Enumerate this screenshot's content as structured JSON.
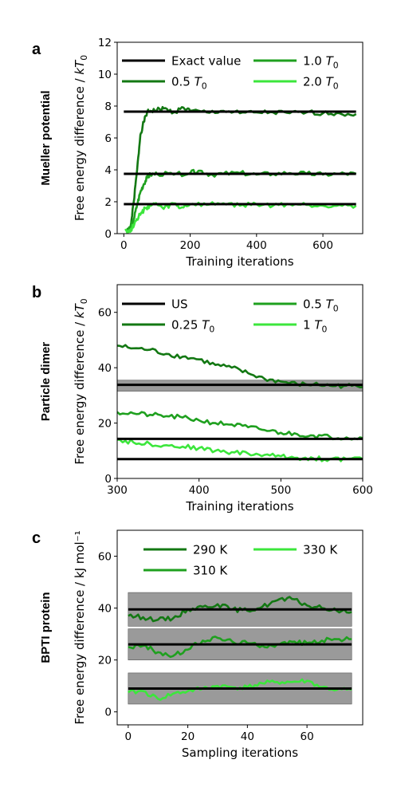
{
  "chart_data": [
    {
      "type": "line",
      "panel_letter": "a",
      "row_label": "Mueller potential",
      "xlabel": "Training iterations",
      "ylabel": "Free energy difference / kT0",
      "xlim": [
        -20,
        720
      ],
      "ylim": [
        0,
        12
      ],
      "xticks": [
        0,
        200,
        400,
        600
      ],
      "yticks": [
        0,
        2,
        4,
        6,
        8,
        10,
        12
      ],
      "legend_position": "top",
      "legend": [
        {
          "label": "Exact value",
          "color": "#000000"
        },
        {
          "label": "1.0 T0",
          "color": "#1fa01f"
        },
        {
          "label": "0.5 T0",
          "color": "#137813"
        },
        {
          "label": "2.0 T0",
          "color": "#3ce63c"
        }
      ],
      "reference_lines": [
        {
          "name": "Exact value",
          "y": 7.65,
          "x": [
            0,
            700
          ]
        },
        {
          "name": "Exact value",
          "y": 3.75,
          "x": [
            0,
            700
          ]
        },
        {
          "name": "Exact value",
          "y": 1.85,
          "x": [
            0,
            700
          ]
        }
      ],
      "series": [
        {
          "name": "0.5 T0",
          "color": "#137813",
          "target": 7.65,
          "points": [
            [
              20,
              0.3
            ],
            [
              30,
              2.0
            ],
            [
              40,
              4.0
            ],
            [
              50,
              6.2
            ],
            [
              60,
              7.0
            ],
            [
              70,
              7.6
            ],
            [
              80,
              7.7
            ],
            [
              100,
              7.75
            ],
            [
              120,
              7.85
            ],
            [
              150,
              7.6
            ],
            [
              180,
              7.9
            ],
            [
              200,
              7.7
            ],
            [
              250,
              7.6
            ],
            [
              300,
              7.7
            ],
            [
              350,
              7.55
            ],
            [
              400,
              7.6
            ],
            [
              450,
              7.6
            ],
            [
              500,
              7.55
            ],
            [
              550,
              7.6
            ],
            [
              600,
              7.55
            ],
            [
              650,
              7.55
            ],
            [
              700,
              7.5
            ]
          ]
        },
        {
          "name": "1.0 T0",
          "color": "#1fa01f",
          "target": 3.75,
          "points": [
            [
              10,
              0.2
            ],
            [
              20,
              0.4
            ],
            [
              30,
              0.9
            ],
            [
              40,
              1.8
            ],
            [
              50,
              2.6
            ],
            [
              60,
              3.1
            ],
            [
              70,
              3.5
            ],
            [
              80,
              3.7
            ],
            [
              100,
              3.75
            ],
            [
              150,
              3.7
            ],
            [
              200,
              3.8
            ],
            [
              230,
              3.95
            ],
            [
              260,
              3.7
            ],
            [
              300,
              3.75
            ],
            [
              350,
              3.8
            ],
            [
              400,
              3.7
            ],
            [
              450,
              3.75
            ],
            [
              500,
              3.8
            ],
            [
              550,
              3.75
            ],
            [
              600,
              3.7
            ],
            [
              650,
              3.75
            ],
            [
              700,
              3.75
            ]
          ]
        },
        {
          "name": "2.0 T0",
          "color": "#3ce63c",
          "target": 1.85,
          "points": [
            [
              5,
              0.3
            ],
            [
              15,
              0.1
            ],
            [
              25,
              0.35
            ],
            [
              35,
              0.8
            ],
            [
              45,
              1.1
            ],
            [
              55,
              1.3
            ],
            [
              65,
              1.6
            ],
            [
              80,
              1.75
            ],
            [
              100,
              1.85
            ],
            [
              120,
              1.55
            ],
            [
              150,
              1.9
            ],
            [
              170,
              1.6
            ],
            [
              200,
              1.85
            ],
            [
              250,
              1.8
            ],
            [
              300,
              1.9
            ],
            [
              350,
              1.75
            ],
            [
              400,
              1.85
            ],
            [
              450,
              1.75
            ],
            [
              500,
              1.85
            ],
            [
              550,
              1.8
            ],
            [
              600,
              1.75
            ],
            [
              650,
              1.8
            ],
            [
              700,
              1.75
            ]
          ]
        }
      ]
    },
    {
      "type": "line",
      "panel_letter": "b",
      "row_label": "Particle dimer",
      "xlabel": "Training iterations",
      "ylabel": "Free energy difference / kT0",
      "xlim": [
        300,
        600
      ],
      "ylim": [
        0,
        70
      ],
      "xticks": [
        300,
        400,
        500,
        600
      ],
      "yticks": [
        0,
        20,
        40,
        60
      ],
      "legend_position": "top",
      "legend": [
        {
          "label": "US",
          "color": "#000000"
        },
        {
          "label": "0.5 T0",
          "color": "#1fa01f"
        },
        {
          "label": "0.25 T0",
          "color": "#137813"
        },
        {
          "label": "1 T0",
          "color": "#3ce63c"
        }
      ],
      "bands": [
        {
          "y": [
            31.5,
            35.5
          ],
          "x": [
            300,
            600
          ],
          "color": "#888888"
        }
      ],
      "reference_lines": [
        {
          "name": "US",
          "y": 33.8,
          "x": [
            300,
            600
          ]
        },
        {
          "name": "US",
          "y": 14.3,
          "x": [
            300,
            600
          ]
        },
        {
          "name": "US",
          "y": 7.0,
          "x": [
            300,
            600
          ]
        }
      ],
      "series": [
        {
          "name": "0.25 T0",
          "color": "#137813",
          "points": [
            [
              300,
              48
            ],
            [
              320,
              47
            ],
            [
              340,
              46.5
            ],
            [
              360,
              45
            ],
            [
              380,
              44
            ],
            [
              400,
              43
            ],
            [
              420,
              41
            ],
            [
              440,
              40
            ],
            [
              460,
              38
            ],
            [
              480,
              36
            ],
            [
              500,
              35
            ],
            [
              520,
              34
            ],
            [
              540,
              34
            ],
            [
              560,
              33.5
            ],
            [
              580,
              33.5
            ],
            [
              600,
              33
            ]
          ]
        },
        {
          "name": "0.5 T0",
          "color": "#1fa01f",
          "points": [
            [
              300,
              24
            ],
            [
              320,
              23.5
            ],
            [
              340,
              23
            ],
            [
              360,
              22.5
            ],
            [
              380,
              22
            ],
            [
              400,
              21
            ],
            [
              420,
              20
            ],
            [
              440,
              19.5
            ],
            [
              460,
              18.5
            ],
            [
              480,
              17.5
            ],
            [
              500,
              16.5
            ],
            [
              520,
              16
            ],
            [
              540,
              15.5
            ],
            [
              560,
              15
            ],
            [
              580,
              14.8
            ],
            [
              600,
              14.6
            ]
          ]
        },
        {
          "name": "1 T0",
          "color": "#3ce63c",
          "points": [
            [
              300,
              14
            ],
            [
              320,
              13
            ],
            [
              340,
              12.5
            ],
            [
              360,
              12
            ],
            [
              380,
              11.5
            ],
            [
              400,
              11
            ],
            [
              420,
              10
            ],
            [
              440,
              9.5
            ],
            [
              460,
              9
            ],
            [
              480,
              8.5
            ],
            [
              500,
              8
            ],
            [
              520,
              7.5
            ],
            [
              540,
              7.2
            ],
            [
              560,
              7
            ],
            [
              580,
              7
            ],
            [
              600,
              7
            ]
          ]
        }
      ]
    },
    {
      "type": "line",
      "panel_letter": "c",
      "row_label": "BPTI protein",
      "xlabel": "Sampling iterations",
      "ylabel": "Free energy difference / kJ mol⁻¹",
      "xlim": [
        -3.7,
        78.7
      ],
      "ylim": [
        -5,
        70
      ],
      "xticks": [
        0,
        20,
        40,
        60
      ],
      "yticks": [
        0,
        20,
        40,
        60
      ],
      "legend_position": "top",
      "legend": [
        {
          "label": "290 K",
          "color": "#137813"
        },
        {
          "label": "330 K",
          "color": "#3ce63c"
        },
        {
          "label": "310 K",
          "color": "#1fa01f"
        }
      ],
      "bands": [
        {
          "y": [
            33,
            46
          ],
          "x": [
            0,
            75
          ],
          "color": "#888888"
        },
        {
          "y": [
            20,
            32
          ],
          "x": [
            0,
            75
          ],
          "color": "#888888"
        },
        {
          "y": [
            3,
            15
          ],
          "x": [
            0,
            75
          ],
          "color": "#888888"
        }
      ],
      "reference_lines": [
        {
          "y": 39.5,
          "x": [
            0,
            75
          ]
        },
        {
          "y": 26,
          "x": [
            0,
            75
          ]
        },
        {
          "y": 9,
          "x": [
            0,
            75
          ]
        }
      ],
      "series": [
        {
          "name": "290 K",
          "color": "#137813",
          "points": [
            [
              0,
              37
            ],
            [
              5,
              36.5
            ],
            [
              10,
              35.5
            ],
            [
              15,
              36
            ],
            [
              20,
              39.5
            ],
            [
              25,
              40.5
            ],
            [
              30,
              41.5
            ],
            [
              35,
              39.5
            ],
            [
              40,
              39
            ],
            [
              45,
              40.5
            ],
            [
              50,
              43
            ],
            [
              55,
              43.5
            ],
            [
              60,
              41
            ],
            [
              65,
              40
            ],
            [
              70,
              39
            ],
            [
              75,
              38.5
            ]
          ]
        },
        {
          "name": "310 K",
          "color": "#1fa01f",
          "points": [
            [
              0,
              25
            ],
            [
              5,
              25.5
            ],
            [
              10,
              23
            ],
            [
              15,
              21.5
            ],
            [
              20,
              24
            ],
            [
              25,
              27.5
            ],
            [
              30,
              28.5
            ],
            [
              35,
              27
            ],
            [
              40,
              26.5
            ],
            [
              45,
              25.5
            ],
            [
              50,
              26
            ],
            [
              55,
              27
            ],
            [
              60,
              26.5
            ],
            [
              65,
              27.5
            ],
            [
              70,
              28
            ],
            [
              75,
              28
            ]
          ]
        },
        {
          "name": "330 K",
          "color": "#3ce63c",
          "points": [
            [
              0,
              7.5
            ],
            [
              5,
              8
            ],
            [
              10,
              5
            ],
            [
              15,
              7
            ],
            [
              20,
              8
            ],
            [
              25,
              9
            ],
            [
              30,
              10
            ],
            [
              35,
              9.5
            ],
            [
              40,
              9.5
            ],
            [
              45,
              11
            ],
            [
              50,
              11.5
            ],
            [
              55,
              11.5
            ],
            [
              60,
              12
            ],
            [
              65,
              9.5
            ],
            [
              70,
              8.5
            ],
            [
              75,
              8.5
            ]
          ]
        }
      ]
    }
  ]
}
